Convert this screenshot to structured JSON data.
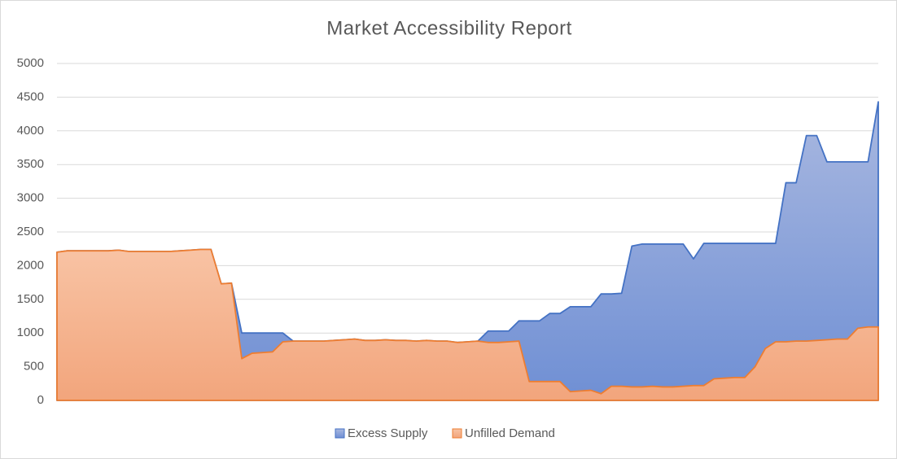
{
  "chart_data": {
    "type": "area",
    "title": "Market Accessibility Report",
    "ylim": [
      0,
      5000
    ],
    "yticks": [
      0,
      500,
      1000,
      1500,
      2000,
      2500,
      3000,
      3500,
      4000,
      4500,
      5000
    ],
    "grid": true,
    "legend": "bottom",
    "series": [
      {
        "name": "Excess Supply",
        "color": "#4472c4",
        "values": [
          2200,
          2220,
          2220,
          2220,
          2220,
          2220,
          2230,
          2210,
          2210,
          2210,
          2210,
          2210,
          2220,
          2230,
          2240,
          2240,
          1730,
          1740,
          1000,
          1000,
          1000,
          1000,
          1000,
          880,
          880,
          880,
          880,
          890,
          900,
          910,
          890,
          890,
          900,
          890,
          890,
          880,
          890,
          880,
          880,
          860,
          870,
          880,
          1030,
          1030,
          1030,
          1180,
          1180,
          1180,
          1290,
          1290,
          1390,
          1390,
          1390,
          1580,
          1580,
          1590,
          2290,
          2320,
          2320,
          2320,
          2320,
          2320,
          2100,
          2330,
          2330,
          2330,
          2330,
          2330,
          2330,
          2330,
          2330,
          3230,
          3230,
          3930,
          3930,
          3540,
          3540,
          3540,
          3540,
          3540,
          4430
        ]
      },
      {
        "name": "Unfilled Demand",
        "color": "#ed7d31",
        "values": [
          2200,
          2220,
          2220,
          2220,
          2220,
          2220,
          2230,
          2210,
          2210,
          2210,
          2210,
          2210,
          2220,
          2230,
          2240,
          2240,
          1730,
          1740,
          620,
          700,
          710,
          720,
          870,
          880,
          880,
          880,
          880,
          890,
          900,
          910,
          890,
          890,
          900,
          890,
          890,
          880,
          890,
          880,
          880,
          860,
          870,
          880,
          860,
          860,
          870,
          880,
          280,
          280,
          280,
          280,
          130,
          140,
          150,
          100,
          210,
          210,
          200,
          200,
          210,
          200,
          200,
          210,
          220,
          220,
          320,
          330,
          340,
          340,
          500,
          770,
          870,
          870,
          880,
          880,
          890,
          900,
          910,
          910,
          1070,
          1090,
          1090
        ]
      }
    ]
  }
}
